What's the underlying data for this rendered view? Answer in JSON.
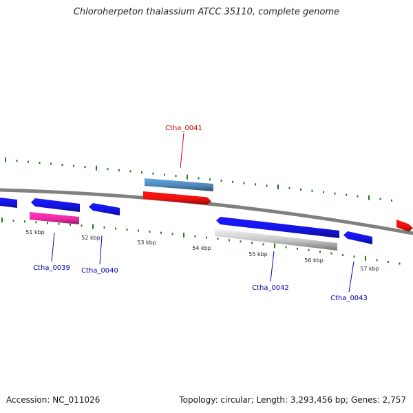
{
  "title": "Chloroherpeton thalassium ATCC 35110, complete genome",
  "footer": {
    "accession": "Accession: NC_011026",
    "summary": "Topology: circular; Length: 3,293,456 bp; Genes: 2,757"
  },
  "colors": {
    "backbone": "#808080",
    "tick": "#1a7a1a",
    "forward_label": "#cc0000",
    "reverse_label": "#0000aa"
  },
  "scale": {
    "unit": "kbp",
    "ticks": [
      {
        "label": "51 kbp"
      },
      {
        "label": "52 kbp"
      },
      {
        "label": "53 kbp"
      },
      {
        "label": "54 kbp"
      },
      {
        "label": "55 kbp"
      },
      {
        "label": "56 kbp"
      },
      {
        "label": "57 kbp"
      }
    ]
  },
  "labels": [
    {
      "text": "Ctha_0041",
      "strand": "forward"
    },
    {
      "text": "Ctha_0039",
      "strand": "reverse"
    },
    {
      "text": "Ctha_0040",
      "strand": "reverse"
    },
    {
      "text": "Ctha_0042",
      "strand": "reverse"
    },
    {
      "text": "Ctha_0043",
      "strand": "reverse"
    }
  ],
  "features": [
    {
      "name": "reverse-gene-left-edge",
      "color": "#1515e8",
      "strand": "reverse"
    },
    {
      "name": "Ctha_0039",
      "color": "#1515e8",
      "strand": "reverse"
    },
    {
      "name": "Ctha_0039-rna",
      "color": "#ee2aa0",
      "strand": "reverse"
    },
    {
      "name": "Ctha_0040",
      "color": "#1515e8",
      "strand": "reverse"
    },
    {
      "name": "Ctha_0041",
      "color": "#ee1010",
      "strand": "forward"
    },
    {
      "name": "Ctha_0041-cds",
      "color": "#4f86b8",
      "strand": "forward"
    },
    {
      "name": "Ctha_0042",
      "color": "#1515e8",
      "strand": "reverse"
    },
    {
      "name": "Ctha_0042-pseudo",
      "color": "#c4c4c4",
      "strand": "reverse"
    },
    {
      "name": "Ctha_0043",
      "color": "#1515e8",
      "strand": "reverse"
    },
    {
      "name": "forward-gene-right-edge",
      "color": "#ee1010",
      "strand": "forward"
    }
  ]
}
